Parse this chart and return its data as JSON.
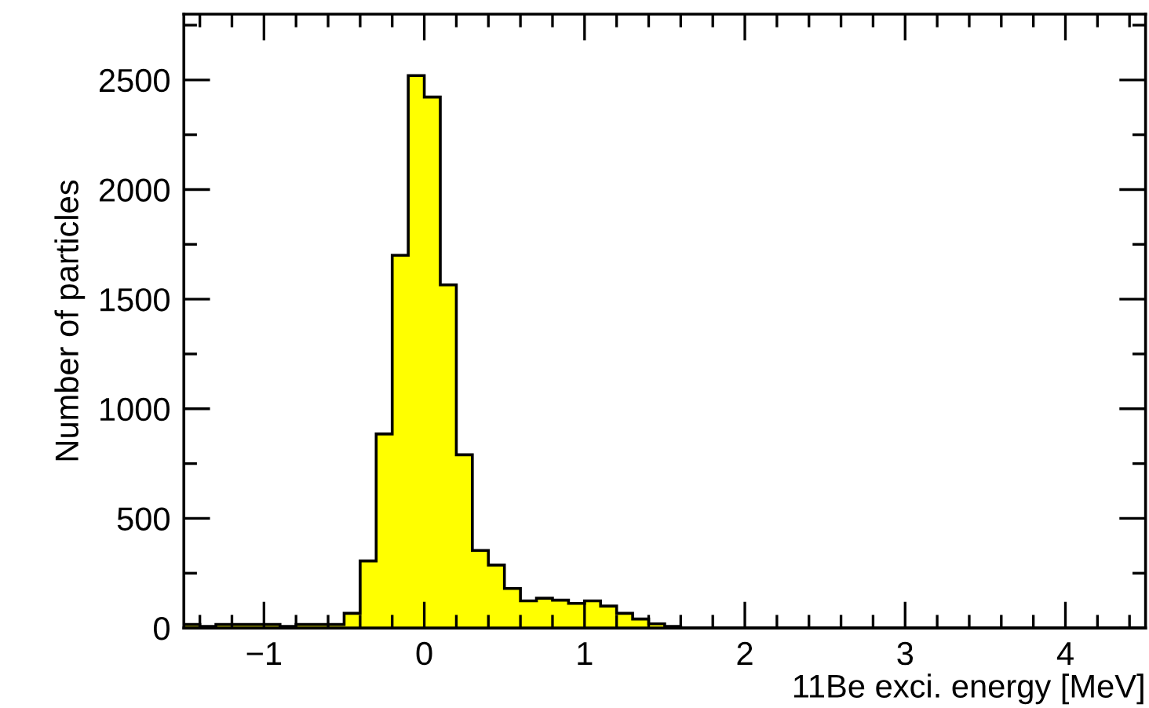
{
  "chart_data": {
    "type": "histogram",
    "xlabel": "11Be exci. energy [MeV]",
    "ylabel": "Number of particles",
    "color": "#ffff00",
    "bins": [
      -1.5,
      -1.4,
      -1.3,
      -1.2,
      -1.1,
      -1.0,
      -0.9,
      -0.8,
      -0.7,
      -0.6,
      -0.5,
      -0.4,
      -0.3,
      -0.2,
      -0.1,
      0.0,
      0.1,
      0.2,
      0.3,
      0.4,
      0.5,
      0.6,
      0.7,
      0.8,
      0.9,
      1.0,
      1.1,
      1.2,
      1.3,
      1.4,
      1.5,
      1.6,
      1.7,
      1.8,
      1.9,
      2.0,
      2.1,
      2.2,
      2.3,
      2.4,
      2.5,
      2.6,
      2.7,
      2.8,
      2.9,
      3.0,
      3.1,
      3.2,
      3.3,
      3.4,
      3.5,
      3.6,
      3.7,
      3.8,
      3.9,
      4.0,
      4.1,
      4.2,
      4.3,
      4.4,
      4.5
    ],
    "values": [
      16,
      7,
      16,
      16,
      16,
      16,
      7,
      16,
      16,
      16,
      67,
      306,
      885,
      1700,
      2520,
      2422,
      1565,
      790,
      354,
      287,
      180,
      124,
      136,
      127,
      112,
      124,
      100,
      67,
      41,
      19,
      7,
      0,
      0,
      0,
      0,
      0,
      0,
      0,
      0,
      0,
      0,
      0,
      0,
      0,
      0,
      0,
      0,
      0,
      0,
      0,
      0,
      0,
      0,
      0,
      0,
      0,
      0,
      0,
      0,
      0
    ],
    "xlim": [
      -1.5,
      4.5
    ],
    "ylim": [
      0,
      2800
    ],
    "xticks": [
      {
        "value": -1.4,
        "label": null
      },
      {
        "value": -1.2,
        "label": null
      },
      {
        "value": -1,
        "label": "−1"
      },
      {
        "value": -0.8,
        "label": null
      },
      {
        "value": -0.6,
        "label": null
      },
      {
        "value": -0.4,
        "label": null
      },
      {
        "value": -0.2,
        "label": null
      },
      0,
      {
        "value": 0.2,
        "label": null
      },
      {
        "value": 0.4,
        "label": null
      },
      {
        "value": 0.6,
        "label": null
      },
      {
        "value": 0.8,
        "label": null
      },
      1,
      {
        "value": 1.2,
        "label": null
      },
      {
        "value": 1.4,
        "label": null
      },
      {
        "value": 1.6,
        "label": null
      },
      {
        "value": 1.8,
        "label": null
      },
      2,
      {
        "value": 2.2,
        "label": null
      },
      {
        "value": 2.4,
        "label": null
      },
      {
        "value": 2.6,
        "label": null
      },
      {
        "value": 2.8,
        "label": null
      },
      3,
      {
        "value": 3.2,
        "label": null
      },
      {
        "value": 3.4,
        "label": null
      },
      {
        "value": 3.6,
        "label": null
      },
      {
        "value": 3.8,
        "label": null
      },
      4,
      {
        "value": 4.2,
        "label": null
      },
      {
        "value": 4.4,
        "label": null
      }
    ],
    "yticks": [
      0,
      {
        "value": 250,
        "label": null
      },
      500,
      {
        "value": 750,
        "label": null
      },
      1000,
      {
        "value": 1250,
        "label": null
      },
      1500,
      {
        "value": 1750,
        "label": null
      },
      2000,
      {
        "value": 2250,
        "label": null
      },
      2500,
      {
        "value": 2750,
        "label": null
      }
    ],
    "grid": false
  }
}
